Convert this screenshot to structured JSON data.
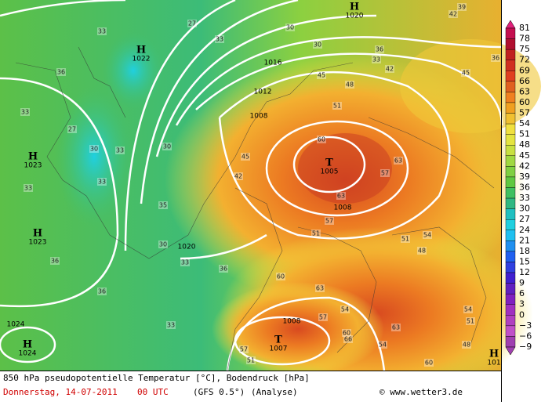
{
  "pressure_centers": [
    {
      "symbol": "H",
      "value": "1020"
    },
    {
      "symbol": "H",
      "value": "1022"
    },
    {
      "symbol": "H",
      "value": "1023"
    },
    {
      "symbol": "H",
      "value": "1023"
    },
    {
      "symbol": "H",
      "value": "1024"
    },
    {
      "symbol": "T",
      "value": "1005"
    },
    {
      "symbol": "T",
      "value": "1007"
    },
    {
      "symbol": "H",
      "value": "101"
    }
  ],
  "isobar_labels": [
    "1016",
    "1012",
    "1008",
    "1008",
    "1020",
    "1008",
    "1024"
  ],
  "contour_labels": [
    "33",
    "33",
    "30",
    "30",
    "27",
    "36",
    "33",
    "27",
    "30",
    "30",
    "33",
    "33",
    "33",
    "36",
    "30",
    "33",
    "36",
    "33",
    "36",
    "42",
    "45",
    "45",
    "48",
    "51",
    "60",
    "57",
    "63",
    "63",
    "57",
    "51",
    "60",
    "63",
    "57",
    "54",
    "63",
    "54",
    "51",
    "57",
    "60",
    "66",
    "51",
    "54",
    "48",
    "51",
    "54",
    "48",
    "60",
    "42",
    "39",
    "36",
    "33",
    "42",
    "45",
    "36",
    "35"
  ],
  "legend": {
    "levels": [
      "81",
      "78",
      "75",
      "72",
      "69",
      "66",
      "63",
      "60",
      "57",
      "54",
      "51",
      "48",
      "45",
      "42",
      "39",
      "36",
      "33",
      "30",
      "27",
      "24",
      "21",
      "18",
      "15",
      "12",
      "9",
      "6",
      "3",
      "0",
      "−3",
      "−6",
      "−9"
    ],
    "colors": [
      "#e0207a",
      "#c41050",
      "#b01030",
      "#c02020",
      "#d03020",
      "#e04020",
      "#e06020",
      "#f08020",
      "#f0a020",
      "#f0c030",
      "#f0e040",
      "#e4e440",
      "#c8e040",
      "#a0d840",
      "#80d040",
      "#60c840",
      "#40c060",
      "#30b880",
      "#20c0c0",
      "#20d0e0",
      "#20c0f0",
      "#2090f0",
      "#2060f0",
      "#3040e0",
      "#4020d0",
      "#6020c0",
      "#8020c0",
      "#a030c0",
      "#b040c0",
      "#c050c8",
      "#a040b0"
    ]
  },
  "footer": {
    "title": "850 hPa pseudopotentielle Temperatur [°C], Bodendruck [hPa]",
    "date": "Donnerstag, 14-07-2011",
    "time": "00 UTC",
    "model": "(GFS 0.5°)",
    "run": "(Analyse)",
    "credit": "© www.wetter3.de"
  }
}
